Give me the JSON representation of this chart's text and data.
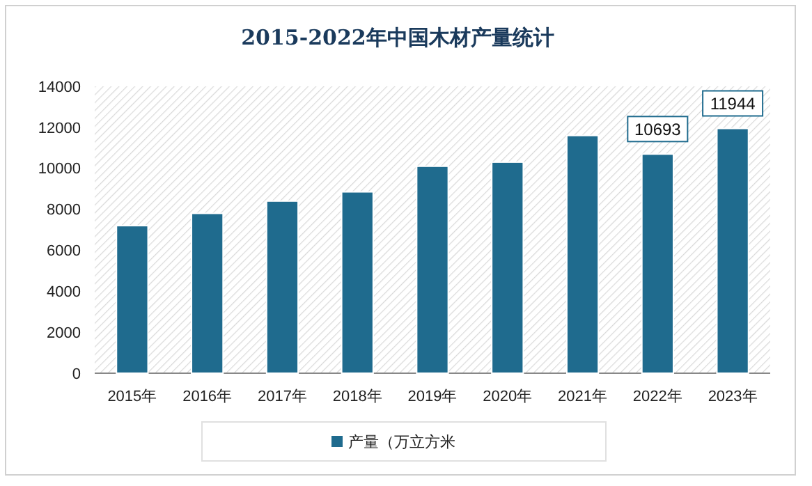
{
  "chart_data": {
    "type": "bar",
    "title": "2015-2022年中国木材产量统计",
    "categories": [
      "2015年",
      "2016年",
      "2017年",
      "2018年",
      "2019年",
      "2020年",
      "2021年",
      "2022年",
      "2023年"
    ],
    "series": [
      {
        "name": "产量（万立方米",
        "color": "#1f6b8e",
        "values": [
          7200,
          7800,
          8400,
          8850,
          10100,
          10300,
          11600,
          10693,
          11944
        ],
        "value_labels": [
          null,
          null,
          null,
          null,
          null,
          null,
          null,
          "10693",
          "11944"
        ]
      }
    ],
    "ylim": [
      0,
      14000
    ],
    "yticks": [
      0,
      2000,
      4000,
      6000,
      8000,
      10000,
      12000,
      14000
    ],
    "grid": false,
    "legend": "bottom"
  }
}
